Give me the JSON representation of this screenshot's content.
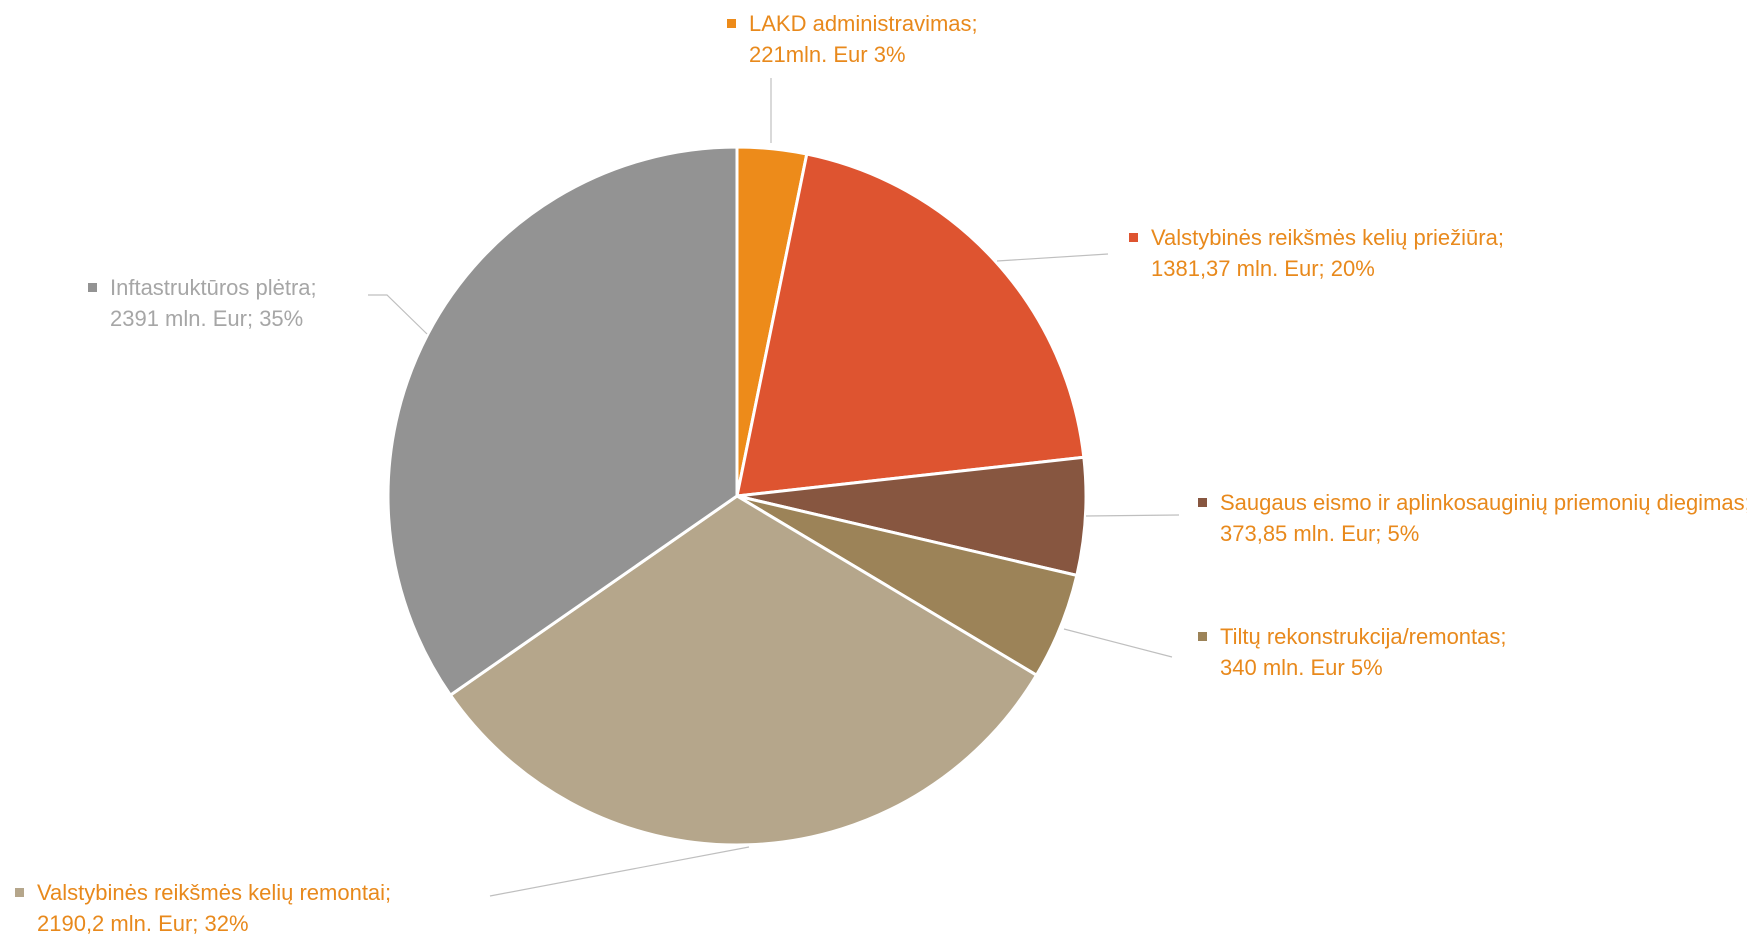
{
  "chart_data": {
    "type": "pie",
    "categories": [
      "LAKD administravimas;",
      "Valstybinės reikšmės kelių priežiūra;",
      "Saugaus eismo ir aplinkosauginių priemonių diegimas;",
      "Tiltų rekonstrukcija/remontas;",
      "Valstybinės reikšmės kelių remontai;",
      "Inftastruktūros plėtra;"
    ],
    "values": [
      221,
      1381.37,
      373.85,
      340,
      2190.2,
      2391
    ],
    "value_labels": [
      "221mln. Eur 3%",
      "1381,37 mln. Eur; 20%",
      "373,85 mln. Eur; 5%",
      "340 mln. Eur 5%",
      "2190,2 mln. Eur; 32%",
      "2391 mln. Eur; 35%"
    ],
    "colors": [
      "#ED8B1A",
      "#DE5430",
      "#875640",
      "#9C8358",
      "#B5A68B",
      "#939393"
    ],
    "label_colors": [
      "#E8891C",
      "#E8891C",
      "#E8891C",
      "#E8891C",
      "#E8891C",
      "#A6A6A6"
    ]
  }
}
